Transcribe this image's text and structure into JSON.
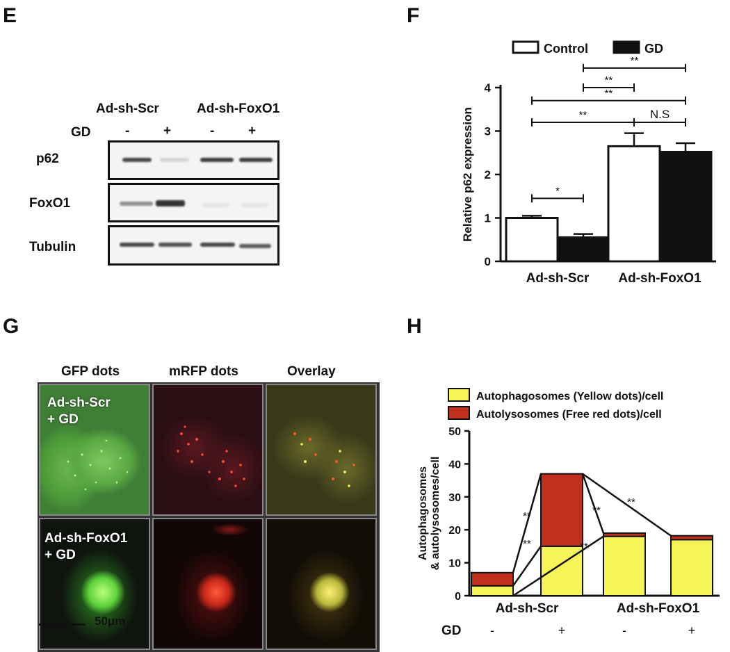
{
  "panels": {
    "e": "E",
    "f": "F",
    "g": "G",
    "h": "H"
  },
  "blot": {
    "groups": [
      "Ad-sh-Scr",
      "Ad-sh-FoxO1"
    ],
    "gd_label": "GD",
    "gd_signs": [
      "-",
      "+",
      "-",
      "+"
    ],
    "rows": [
      {
        "label": "p62",
        "intensity": [
          0.85,
          0.15,
          0.9,
          0.9
        ]
      },
      {
        "label": "FoxO1",
        "intensity": [
          0.5,
          0.95,
          0.08,
          0.08
        ]
      },
      {
        "label": "Tubulin",
        "intensity": [
          0.85,
          0.8,
          0.85,
          0.75
        ]
      }
    ]
  },
  "micro": {
    "columns": [
      "GFP dots",
      "mRFP dots",
      "Overlay"
    ],
    "rows": [
      {
        "line1": "Ad-sh-Scr",
        "line2": "+ GD"
      },
      {
        "line1": "Ad-sh-FoxO1",
        "line2": "+ GD"
      }
    ],
    "scale_bar": "50μm"
  },
  "chart_data": [
    {
      "type": "bar",
      "categories": [
        "Ad-sh-Scr",
        "Ad-sh-FoxO1"
      ],
      "series": [
        {
          "name": "Control",
          "values": [
            1.0,
            2.65
          ],
          "errors": [
            0.05,
            0.3
          ],
          "color": "#ffffff"
        },
        {
          "name": "GD",
          "values": [
            0.55,
            2.52
          ],
          "errors": [
            0.08,
            0.2
          ],
          "color": "#111111"
        }
      ],
      "ylabel": "Relative p62 expression",
      "ylim": [
        0,
        4
      ],
      "yticks": [
        "0",
        "1",
        "2",
        "3",
        "4"
      ],
      "legend": "top",
      "significance": [
        {
          "from": 0,
          "to": 1,
          "label": "*"
        },
        {
          "from": 0,
          "to": 2,
          "label": "**"
        },
        {
          "from": 2,
          "to": 3,
          "label": "N.S"
        },
        {
          "from": 0,
          "to": 3,
          "label": "**"
        },
        {
          "from": 1,
          "to": 2,
          "label": "**"
        },
        {
          "from": 1,
          "to": 3,
          "label": "**"
        }
      ]
    },
    {
      "type": "bar",
      "stacked": true,
      "categories": [
        "-",
        "+",
        "-",
        "+"
      ],
      "group_labels": [
        "Ad-sh-Scr",
        "Ad-sh-FoxO1"
      ],
      "x_row_label": "GD",
      "series": [
        {
          "name": "Autophagosomes (Yellow dots)/cell",
          "values": [
            3,
            15,
            18,
            17
          ],
          "color": "#f5f55a"
        },
        {
          "name": "Autolysosomes (Free red dots)/cell",
          "values": [
            4,
            22,
            1,
            1.2
          ],
          "color": "#c0301e"
        }
      ],
      "ylabel_line1": "Autophagosomes",
      "ylabel_line2": "& autolysosomes/cell",
      "ylim": [
        0,
        50
      ],
      "yticks": [
        "0",
        "10",
        "20",
        "30",
        "40",
        "50"
      ],
      "legend": "top",
      "significance_labels": [
        "**",
        "**",
        "**",
        "**",
        "**"
      ]
    }
  ]
}
